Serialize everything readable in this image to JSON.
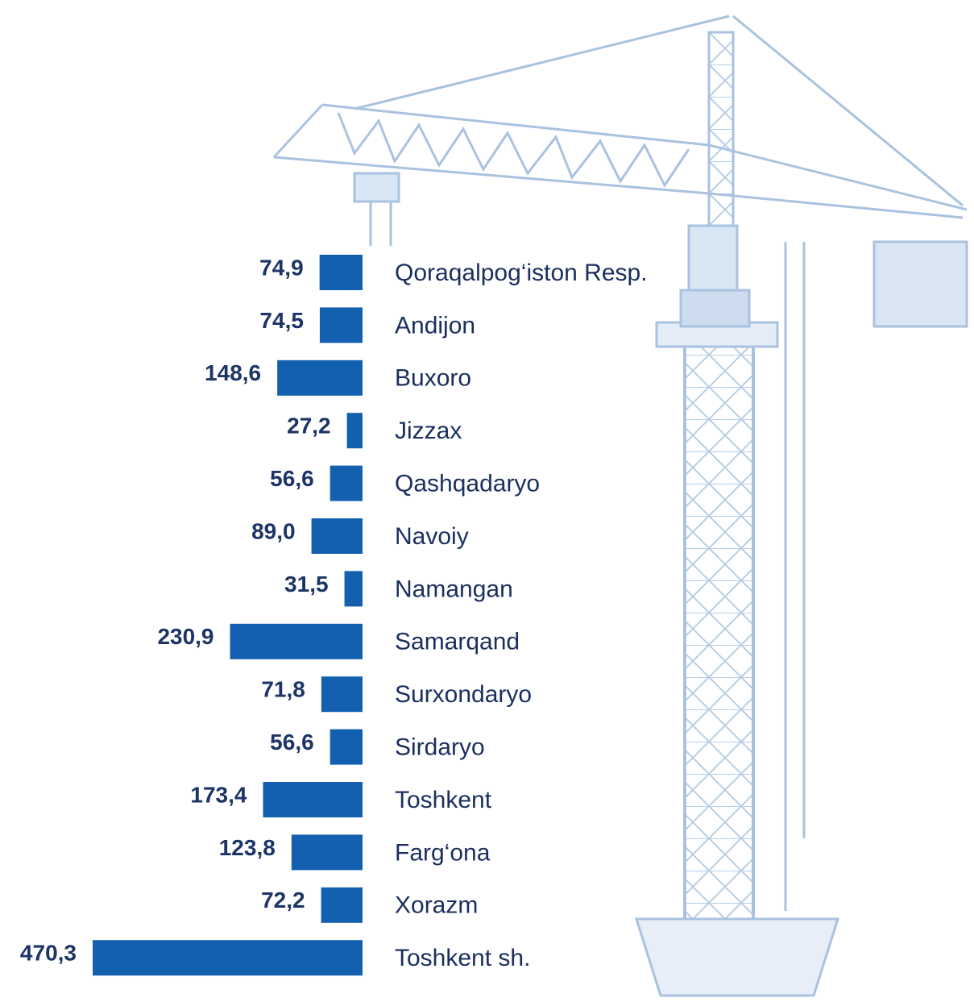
{
  "chart_data": {
    "type": "bar",
    "orientation": "horizontal",
    "color": "#1360b0",
    "categories": [
      "Qoraqalpog‘iston Resp.",
      "Andijon",
      "Buxoro",
      "Jizzax",
      "Qashqadaryo",
      "Navoiy",
      "Namangan",
      "Samarqand",
      "Surxondaryo",
      "Sirdaryo",
      "Toshkent",
      "Farg‘ona",
      "Xorazm",
      "Toshkent sh."
    ],
    "values": [
      74.9,
      74.5,
      148.6,
      27.2,
      56.6,
      89.0,
      31.5,
      230.9,
      71.8,
      56.6,
      173.4,
      123.8,
      72.2,
      470.3
    ],
    "value_labels": [
      "74,9",
      "74,5",
      "148,6",
      "27,2",
      "56,6",
      "89,0",
      "31,5",
      "230,9",
      "71,8",
      "56,6",
      "173,4",
      "123,8",
      "72,2",
      "470,3"
    ]
  }
}
